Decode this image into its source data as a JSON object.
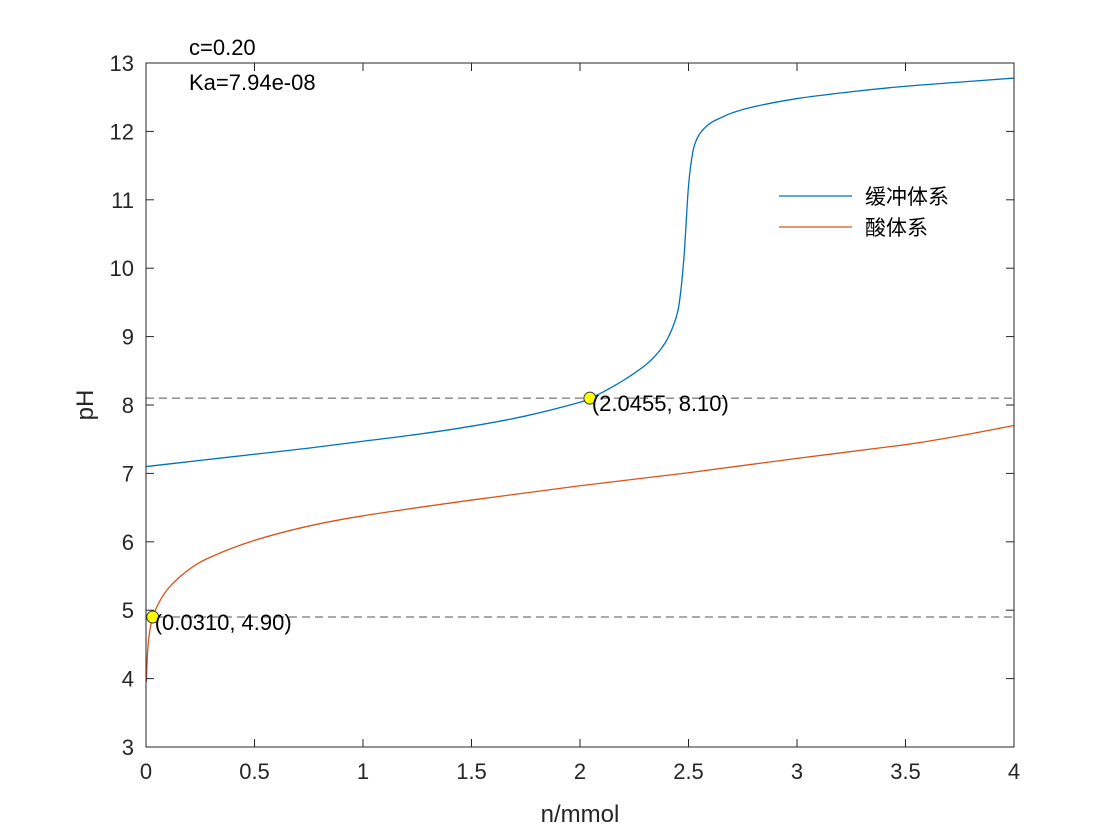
{
  "chart_data": {
    "type": "line",
    "xlabel": "n/mmol",
    "ylabel": "pH",
    "xlim": [
      0,
      4
    ],
    "ylim": [
      3,
      13
    ],
    "xticks": [
      "0",
      "0.5",
      "1",
      "1.5",
      "2",
      "2.5",
      "3",
      "3.5",
      "4"
    ],
    "yticks": [
      "3",
      "4",
      "5",
      "6",
      "7",
      "8",
      "9",
      "10",
      "11",
      "12",
      "13"
    ],
    "grid": false,
    "legend_position": "top-right",
    "annotations": [
      "c=0.20",
      "Ka=7.94e-08"
    ],
    "series": [
      {
        "name": "缓冲体系",
        "color": "#0072BD",
        "x": [
          0,
          0.25,
          0.5,
          0.75,
          1.0,
          1.25,
          1.5,
          1.75,
          2.0,
          2.0455,
          2.1,
          2.2,
          2.3,
          2.35,
          2.4,
          2.44,
          2.46,
          2.48,
          2.5,
          2.52,
          2.54,
          2.56,
          2.6,
          2.65,
          2.7,
          2.8,
          3.0,
          3.25,
          3.5,
          3.75,
          4.0
        ],
        "y": [
          7.1,
          7.19,
          7.28,
          7.37,
          7.47,
          7.57,
          7.69,
          7.84,
          8.04,
          8.1,
          8.18,
          8.36,
          8.58,
          8.73,
          8.95,
          9.25,
          9.55,
          10.2,
          11.2,
          11.7,
          11.9,
          12.0,
          12.12,
          12.2,
          12.27,
          12.36,
          12.48,
          12.58,
          12.66,
          12.72,
          12.78
        ]
      },
      {
        "name": "酸体系",
        "color": "#D95319",
        "x": [
          0.002,
          0.005,
          0.01,
          0.02,
          0.031,
          0.05,
          0.08,
          0.12,
          0.2,
          0.3,
          0.5,
          0.75,
          1.0,
          1.5,
          2.0,
          2.5,
          3.0,
          3.5,
          3.75,
          4.0
        ],
        "y": [
          3.95,
          4.25,
          4.5,
          4.75,
          4.9,
          5.05,
          5.22,
          5.38,
          5.6,
          5.78,
          6.02,
          6.23,
          6.38,
          6.61,
          6.82,
          7.01,
          7.22,
          7.42,
          7.55,
          7.7
        ]
      }
    ],
    "reference_lines": [
      {
        "type": "horizontal",
        "y": 8.1,
        "style": "dashed",
        "color": "#555555"
      },
      {
        "type": "horizontal",
        "y": 4.9,
        "style": "dashed",
        "color": "#555555"
      }
    ],
    "markers": [
      {
        "x": 2.0455,
        "y": 8.1,
        "label": "(2.0455, 8.10)",
        "color": "#FFFF00"
      },
      {
        "x": 0.031,
        "y": 4.9,
        "label": "(0.0310, 4.90)",
        "color": "#FFFF00"
      }
    ]
  }
}
